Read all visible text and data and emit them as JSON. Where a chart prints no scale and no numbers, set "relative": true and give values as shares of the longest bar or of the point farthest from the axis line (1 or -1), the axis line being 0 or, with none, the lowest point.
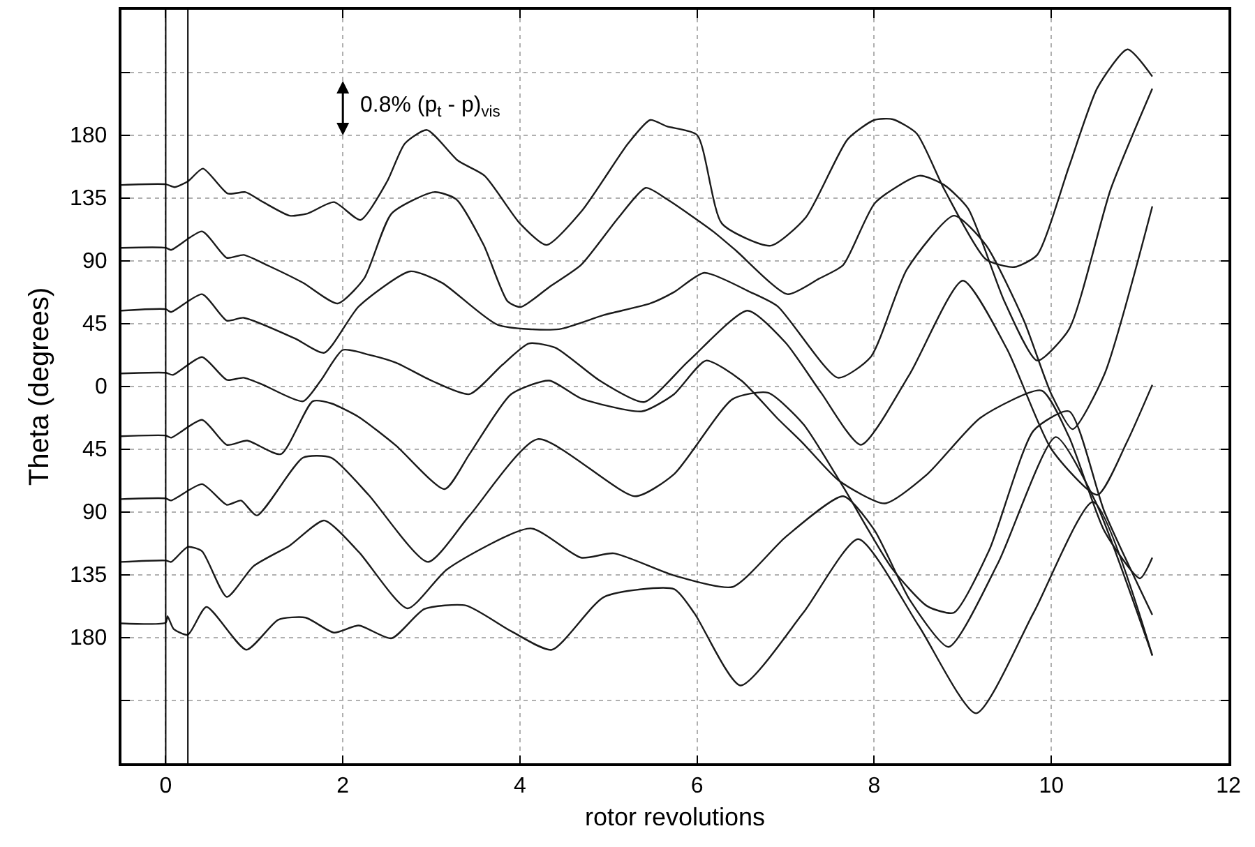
{
  "chart_data": {
    "type": "line",
    "xlabel": "rotor revolutions",
    "ylabel": "Theta (degrees)",
    "relative": true,
    "xlim": [
      -0.5,
      12
    ],
    "xticks": [
      0,
      2,
      4,
      6,
      8,
      10,
      12
    ],
    "grid": true,
    "marker": "none",
    "line_style": "solid",
    "ref_lines": [
      {
        "axis": "x",
        "value": 0,
        "color": "#000000"
      },
      {
        "axis": "x",
        "value": 0.25,
        "color": "#000000"
      }
    ],
    "annotations": [
      "0.8% (p$_{t}$ - p)$_{vis}$",
      "180",
      "135",
      "90",
      "45",
      "0",
      "45",
      "90",
      "135",
      "180"
    ],
    "series": [
      {
        "color": "#1a1a1a",
        "x": [
          -0.5,
          0,
          0.1,
          0.25,
          0.42,
          0.7,
          0.9,
          1.1,
          1.4,
          1.6,
          1.9,
          2.2,
          2.5,
          2.7,
          2.95,
          3.3,
          3.6,
          4.0,
          4.3,
          4.7,
          5.22,
          5.47,
          5.66,
          6.0,
          6.28,
          6.83,
          7.23,
          7.7,
          8.0,
          8.21,
          8.48,
          8.79,
          9.26,
          9.58,
          9.84,
          10.2,
          10.52,
          10.86,
          11.14
        ],
        "values": [
          0.81,
          0.811,
          0.807,
          0.815,
          0.833,
          0.798,
          0.8,
          0.786,
          0.767,
          0.77,
          0.786,
          0.761,
          0.815,
          0.868,
          0.887,
          0.844,
          0.823,
          0.756,
          0.726,
          0.774,
          0.868,
          0.901,
          0.892,
          0.88,
          0.756,
          0.725,
          0.765,
          0.874,
          0.901,
          0.902,
          0.882,
          0.804,
          0.706,
          0.695,
          0.712,
          0.836,
          0.946,
          1.0,
          0.962
        ]
      },
      {
        "color": "#1a1a1a",
        "x": [
          -0.5,
          0,
          0.06,
          0.41,
          0.69,
          0.88,
          1.14,
          1.55,
          1.94,
          2.24,
          2.55,
          3.03,
          3.28,
          3.59,
          3.86,
          4.01,
          4.33,
          4.69,
          5.11,
          5.42,
          5.66,
          6.18,
          6.44,
          7.02,
          7.38,
          7.65,
          8.01,
          8.51,
          8.79,
          9.06,
          9.47,
          9.84,
          10.2,
          10.67,
          11.14
        ],
        "values": [
          0.722,
          0.722,
          0.719,
          0.745,
          0.708,
          0.712,
          0.698,
          0.673,
          0.644,
          0.679,
          0.77,
          0.8,
          0.79,
          0.726,
          0.647,
          0.639,
          0.667,
          0.698,
          0.764,
          0.806,
          0.79,
          0.745,
          0.718,
          0.657,
          0.679,
          0.698,
          0.785,
          0.823,
          0.81,
          0.777,
          0.647,
          0.564,
          0.608,
          0.804,
          0.945
        ]
      },
      {
        "color": "#1a1a1a",
        "x": [
          -0.5,
          0,
          0.06,
          0.41,
          0.69,
          0.88,
          1.46,
          1.79,
          2.18,
          2.76,
          3.12,
          3.75,
          4.44,
          4.95,
          5.47,
          5.74,
          6.08,
          6.6,
          6.91,
          7.59,
          7.96,
          8.37,
          8.9,
          9.26,
          9.69,
          10.0,
          10.24,
          10.6,
          11.14
        ],
        "values": [
          0.634,
          0.636,
          0.632,
          0.657,
          0.62,
          0.624,
          0.595,
          0.575,
          0.64,
          0.689,
          0.673,
          0.614,
          0.608,
          0.628,
          0.644,
          0.66,
          0.687,
          0.66,
          0.64,
          0.54,
          0.569,
          0.692,
          0.767,
          0.726,
          0.62,
          0.517,
          0.468,
          0.545,
          0.78
        ]
      },
      {
        "color": "#1a1a1a",
        "x": [
          -0.5,
          0,
          0.08,
          0.41,
          0.69,
          0.88,
          1.1,
          1.55,
          1.75,
          2.0,
          2.3,
          2.6,
          3.0,
          3.43,
          3.8,
          4.1,
          4.4,
          4.9,
          5.4,
          5.9,
          6.57,
          7.0,
          7.4,
          7.85,
          8.4,
          9.0,
          9.5,
          10.0,
          10.52,
          10.85,
          11.14
        ],
        "values": [
          0.546,
          0.547,
          0.544,
          0.569,
          0.537,
          0.54,
          0.53,
          0.507,
          0.536,
          0.579,
          0.572,
          0.561,
          0.536,
          0.517,
          0.558,
          0.588,
          0.582,
          0.536,
          0.506,
          0.563,
          0.634,
          0.589,
          0.519,
          0.446,
          0.545,
          0.676,
          0.58,
          0.44,
          0.376,
          0.449,
          0.53
        ]
      },
      {
        "color": "#1a1a1a",
        "x": [
          -0.5,
          0,
          0.06,
          0.41,
          0.69,
          0.92,
          1.3,
          1.66,
          1.87,
          2.18,
          2.6,
          3.15,
          3.43,
          3.9,
          4.33,
          4.69,
          5.38,
          5.74,
          6.1,
          6.5,
          6.9,
          7.19,
          7.6,
          8.12,
          8.6,
          9.2,
          9.89,
          10.2,
          10.6,
          11.0,
          11.14
        ],
        "values": [
          0.458,
          0.459,
          0.456,
          0.481,
          0.446,
          0.452,
          0.433,
          0.507,
          0.504,
          0.485,
          0.445,
          0.384,
          0.433,
          0.517,
          0.536,
          0.511,
          0.493,
          0.517,
          0.564,
          0.536,
          0.484,
          0.449,
          0.396,
          0.364,
          0.405,
          0.484,
          0.522,
          0.457,
          0.325,
          0.259,
          0.288
        ]
      },
      {
        "color": "#1a1a1a",
        "x": [
          -0.5,
          0,
          0.06,
          0.41,
          0.69,
          0.85,
          1.03,
          1.55,
          1.87,
          2.29,
          2.96,
          3.43,
          4.2,
          5.3,
          5.74,
          6.4,
          6.8,
          7.2,
          7.65,
          8.2,
          8.6,
          8.9,
          9.3,
          9.8,
          10.2,
          10.6,
          11.14
        ],
        "values": [
          0.37,
          0.371,
          0.368,
          0.391,
          0.362,
          0.368,
          0.347,
          0.428,
          0.428,
          0.376,
          0.282,
          0.347,
          0.454,
          0.374,
          0.405,
          0.51,
          0.519,
          0.475,
          0.387,
          0.273,
          0.22,
          0.211,
          0.299,
          0.466,
          0.493,
          0.352,
          0.208
        ]
      },
      {
        "color": "#1a1a1a",
        "x": [
          -0.5,
          0,
          0.06,
          0.25,
          0.41,
          0.69,
          0.99,
          1.4,
          1.79,
          2.18,
          2.73,
          3.18,
          4.12,
          4.69,
          5.06,
          5.74,
          6.4,
          7.0,
          7.65,
          8.0,
          8.4,
          8.84,
          9.4,
          10.05,
          10.5,
          11.14
        ],
        "values": [
          0.282,
          0.284,
          0.282,
          0.303,
          0.297,
          0.233,
          0.276,
          0.305,
          0.34,
          0.296,
          0.217,
          0.272,
          0.329,
          0.288,
          0.294,
          0.263,
          0.247,
          0.317,
          0.374,
          0.327,
          0.229,
          0.163,
          0.281,
          0.457,
          0.366,
          0.151
        ]
      },
      {
        "color": "#1a1a1a",
        "x": [
          -0.5,
          0,
          0.02,
          0.09,
          0.25,
          0.46,
          0.91,
          1.27,
          1.58,
          1.9,
          2.18,
          2.55,
          2.92,
          3.39,
          3.9,
          4.36,
          4.95,
          5.74,
          5.97,
          6.49,
          7.2,
          7.82,
          8.5,
          9.15,
          9.8,
          10.47,
          11.14
        ],
        "values": [
          0.196,
          0.197,
          0.206,
          0.188,
          0.18,
          0.219,
          0.159,
          0.201,
          0.204,
          0.183,
          0.193,
          0.175,
          0.216,
          0.221,
          0.185,
          0.159,
          0.233,
          0.244,
          0.21,
          0.109,
          0.211,
          0.314,
          0.193,
          0.07,
          0.211,
          0.366,
          0.151
        ]
      }
    ]
  }
}
